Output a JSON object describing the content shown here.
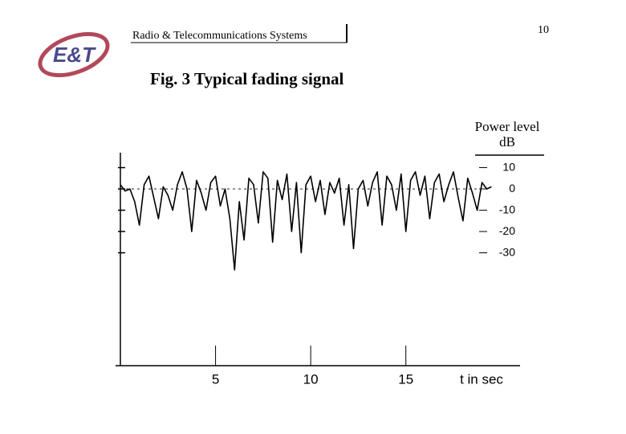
{
  "header": {
    "logo": "E&T",
    "title": "Radio & Telecommunications Systems",
    "page_number": "10"
  },
  "chart_data": {
    "type": "line",
    "title": "Fig. 3 Typical fading signal",
    "x_label": "t in sec",
    "y_label": "Power level",
    "y_unit": "dB",
    "x": [
      0,
      0.25,
      0.5,
      0.75,
      1,
      1.25,
      1.5,
      1.75,
      2,
      2.25,
      2.5,
      2.75,
      3,
      3.25,
      3.5,
      3.75,
      4,
      4.25,
      4.5,
      4.75,
      5,
      5.25,
      5.5,
      5.75,
      6,
      6.25,
      6.5,
      6.75,
      7,
      7.25,
      7.5,
      7.75,
      8,
      8.25,
      8.5,
      8.75,
      9,
      9.25,
      9.5,
      9.75,
      10,
      10.25,
      10.5,
      10.75,
      11,
      11.25,
      11.5,
      11.75,
      12,
      12.25,
      12.5,
      12.75,
      13,
      13.25,
      13.5,
      13.75,
      14,
      14.25,
      14.5,
      14.75,
      15,
      15.25,
      15.5,
      15.75,
      16,
      16.25,
      16.5,
      16.75,
      17,
      17.25,
      17.5,
      17.75,
      18,
      18.25,
      18.5,
      18.75,
      19,
      19.25,
      19.5
    ],
    "values": [
      2,
      -1,
      0,
      -6,
      -17,
      2,
      6,
      -4,
      -14,
      1,
      -3,
      -10,
      2,
      8,
      0,
      -20,
      4,
      -2,
      -10,
      3,
      6,
      -8,
      0,
      -14,
      -38,
      -6,
      -24,
      5,
      2,
      -16,
      8,
      5,
      -25,
      4,
      -5,
      7,
      -20,
      3,
      -30,
      2,
      6,
      -6,
      4,
      -12,
      3,
      -2,
      5,
      -17,
      2,
      -28,
      0,
      4,
      -8,
      3,
      8,
      -17,
      6,
      2,
      -10,
      7,
      -20,
      4,
      8,
      -3,
      6,
      -14,
      3,
      7,
      -6,
      2,
      8,
      -4,
      -15,
      5,
      -2,
      -10,
      3,
      0,
      1
    ],
    "color": "#000000",
    "xlim": [
      0,
      21
    ],
    "xticks": [
      5,
      10,
      15
    ],
    "ylim": [
      -83,
      17
    ],
    "yticks": [
      10,
      0,
      -10,
      -20,
      -30
    ],
    "reference_line": 0
  }
}
